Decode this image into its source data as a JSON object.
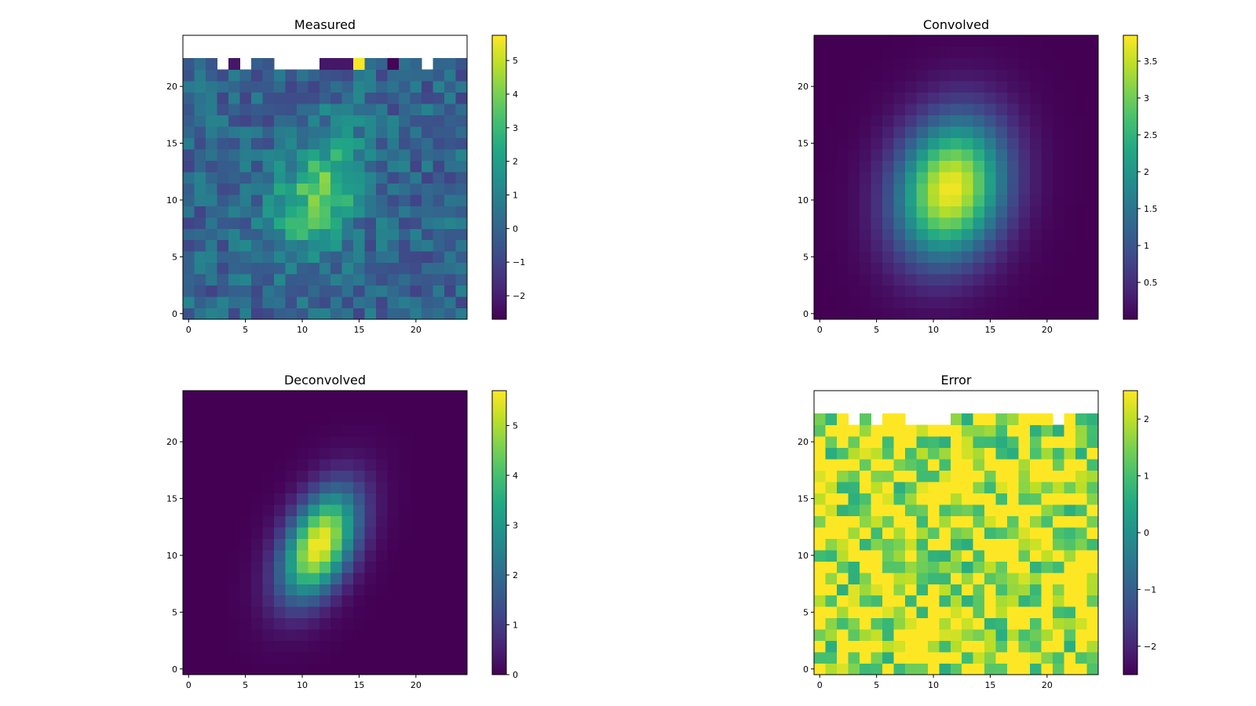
{
  "figure": {
    "background": "#ffffff"
  },
  "chart_data": [
    {
      "type": "heatmap",
      "title": "Measured",
      "field": "measured",
      "nx": 25,
      "ny": 25,
      "xlim": [
        -0.5,
        24.5
      ],
      "ylim": [
        -0.5,
        24.5
      ],
      "x_ticks": [
        0,
        5,
        10,
        15,
        20
      ],
      "y_ticks": [
        0,
        5,
        10,
        15,
        20
      ],
      "colorbar": {
        "vmin": -2.7,
        "vmax": 5.75,
        "ticks": [
          -2,
          -1,
          0,
          1,
          2,
          3,
          4,
          5
        ]
      },
      "missing_rows_from": 23,
      "colormap": "viridis"
    },
    {
      "type": "heatmap",
      "title": "Convolved",
      "field": "convolved",
      "nx": 25,
      "ny": 25,
      "xlim": [
        -0.5,
        24.5
      ],
      "ylim": [
        -0.5,
        24.5
      ],
      "x_ticks": [
        0,
        5,
        10,
        15,
        20
      ],
      "y_ticks": [
        0,
        5,
        10,
        15,
        20
      ],
      "colorbar": {
        "vmin": 0.0,
        "vmax": 3.85,
        "ticks": [
          0.5,
          1.0,
          1.5,
          2.0,
          2.5,
          3.0,
          3.5
        ]
      },
      "peak": {
        "x": 11.5,
        "y": 11,
        "amplitude": 3.8
      },
      "colormap": "viridis"
    },
    {
      "type": "heatmap",
      "title": "Deconvolved",
      "field": "deconvolved",
      "nx": 25,
      "ny": 25,
      "xlim": [
        -0.5,
        24.5
      ],
      "ylim": [
        -0.5,
        24.5
      ],
      "x_ticks": [
        0,
        5,
        10,
        15,
        20
      ],
      "y_ticks": [
        0,
        5,
        10,
        15,
        20
      ],
      "colorbar": {
        "vmin": 0,
        "vmax": 5.7,
        "ticks": [
          0,
          1,
          2,
          3,
          4,
          5
        ]
      },
      "peak": {
        "x": 11.5,
        "y": 11,
        "amplitude": 5.7
      },
      "colormap": "viridis"
    },
    {
      "type": "heatmap",
      "title": "Error",
      "field": "error",
      "nx": 25,
      "ny": 25,
      "xlim": [
        -0.5,
        24.5
      ],
      "ylim": [
        -0.5,
        24.5
      ],
      "x_ticks": [
        0,
        5,
        10,
        15,
        20
      ],
      "y_ticks": [
        0,
        5,
        10,
        15,
        20
      ],
      "colorbar": {
        "vmin": -2.5,
        "vmax": 2.5,
        "ticks": [
          -2,
          -1,
          0,
          1,
          2
        ]
      },
      "missing_rows_from": 23,
      "colormap": "viridis"
    }
  ]
}
